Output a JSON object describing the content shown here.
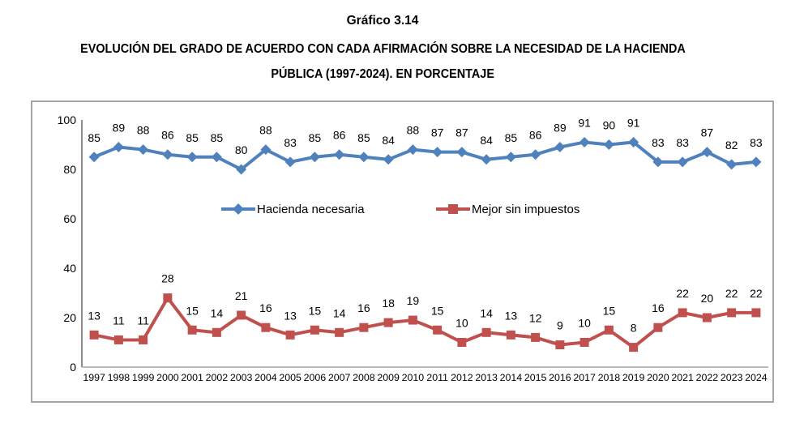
{
  "title": "Gráfico 3.14",
  "subtitle_line1": "EVOLUCIÓN DEL GRADO DE ACUERDO CON CADA AFIRMACIÓN SOBRE LA NECESIDAD DE LA HACIENDA",
  "subtitle_line2": "PÚBLICA (1997-2024). EN PORCENTAJE",
  "colors": {
    "series_blue": "#4F81BD",
    "series_red": "#C0504D",
    "y_axis_line": "#8C8C8C",
    "x_axis_line": "#A3A3A3",
    "label_text": "#000000"
  },
  "chart_data": {
    "type": "line",
    "title": "Gráfico 3.14",
    "subtitle": "EVOLUCIÓN DEL GRADO DE ACUERDO CON CADA AFIRMACIÓN SOBRE LA NECESIDAD DE LA HACIENDA PÚBLICA (1997-2024). EN PORCENTAJE",
    "categories": [
      "1997",
      "1998",
      "1999",
      "2000",
      "2001",
      "2002",
      "2003",
      "2004",
      "2005",
      "2006",
      "2007",
      "2008",
      "2009",
      "2010",
      "2011",
      "2012",
      "2013",
      "2014",
      "2015",
      "2016",
      "2017",
      "2018",
      "2019",
      "2020",
      "2021",
      "2022",
      "2023",
      "2024"
    ],
    "series": [
      {
        "name": "Hacienda necesaria",
        "color": "#4F81BD",
        "marker": "diamond",
        "values": [
          85,
          89,
          88,
          86,
          85,
          85,
          80,
          88,
          83,
          85,
          86,
          85,
          84,
          88,
          87,
          87,
          84,
          85,
          86,
          89,
          91,
          90,
          91,
          83,
          83,
          87,
          82,
          83
        ]
      },
      {
        "name": "Mejor sin impuestos",
        "color": "#C0504D",
        "marker": "square",
        "values": [
          13,
          11,
          11,
          28,
          15,
          14,
          21,
          16,
          13,
          15,
          14,
          16,
          18,
          19,
          15,
          10,
          14,
          13,
          12,
          9,
          10,
          15,
          8,
          16,
          22,
          20,
          22,
          22
        ]
      }
    ],
    "xlabel": "",
    "ylabel": "",
    "ylim": [
      0,
      100
    ],
    "yticks": [
      0,
      20,
      40,
      60,
      80,
      100
    ],
    "grid": false,
    "data_labels": true,
    "legend_position": "inside-middle"
  }
}
